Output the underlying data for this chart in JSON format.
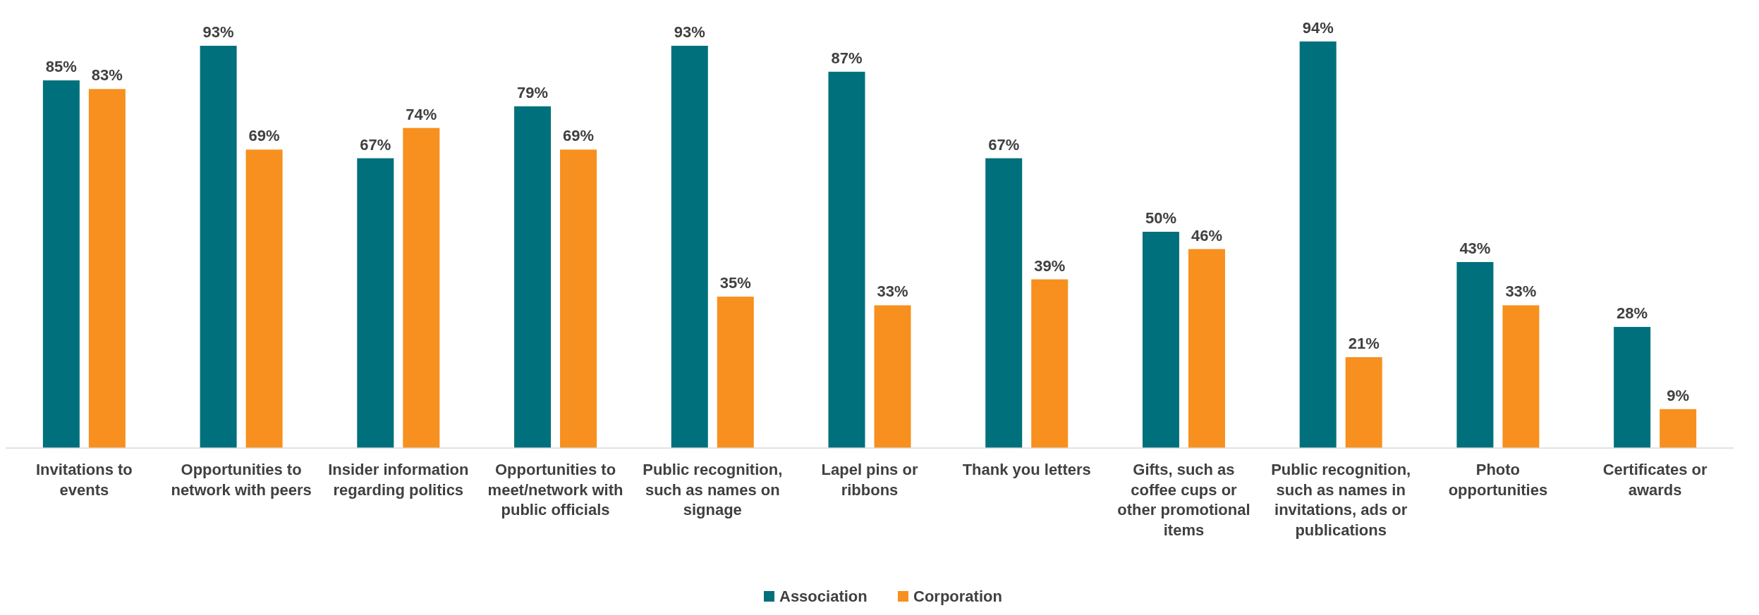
{
  "chart_data": {
    "type": "bar",
    "categories": [
      "Invitations to events",
      "Opportunities to network with peers",
      "Insider information regarding politics",
      "Opportunities to meet/network with public officials",
      "Public recognition, such as names on signage",
      "Lapel pins or ribbons",
      "Thank you letters",
      "Gifts, such as coffee cups or other promotional items",
      "Public recognition, such as names in invitations, ads or publications",
      "Photo opportunities",
      "Certificates or awards"
    ],
    "series": [
      {
        "name": "Association",
        "color": "#00707c",
        "values": [
          85,
          93,
          67,
          79,
          93,
          87,
          67,
          50,
          94,
          43,
          28
        ],
        "value_labels": [
          "85%",
          "93%",
          "67%",
          "79%",
          "93%",
          "87%",
          "67%",
          "50%",
          "94%",
          "43%",
          "28%"
        ]
      },
      {
        "name": "Corporation",
        "color": "#f7901e",
        "values": [
          83,
          69,
          74,
          69,
          35,
          33,
          39,
          46,
          21,
          33,
          9
        ],
        "value_labels": [
          "83%",
          "69%",
          "74%",
          "69%",
          "35%",
          "33%",
          "39%",
          "46%",
          "21%",
          "33%",
          "9%"
        ]
      }
    ],
    "legend": "bottom"
  }
}
